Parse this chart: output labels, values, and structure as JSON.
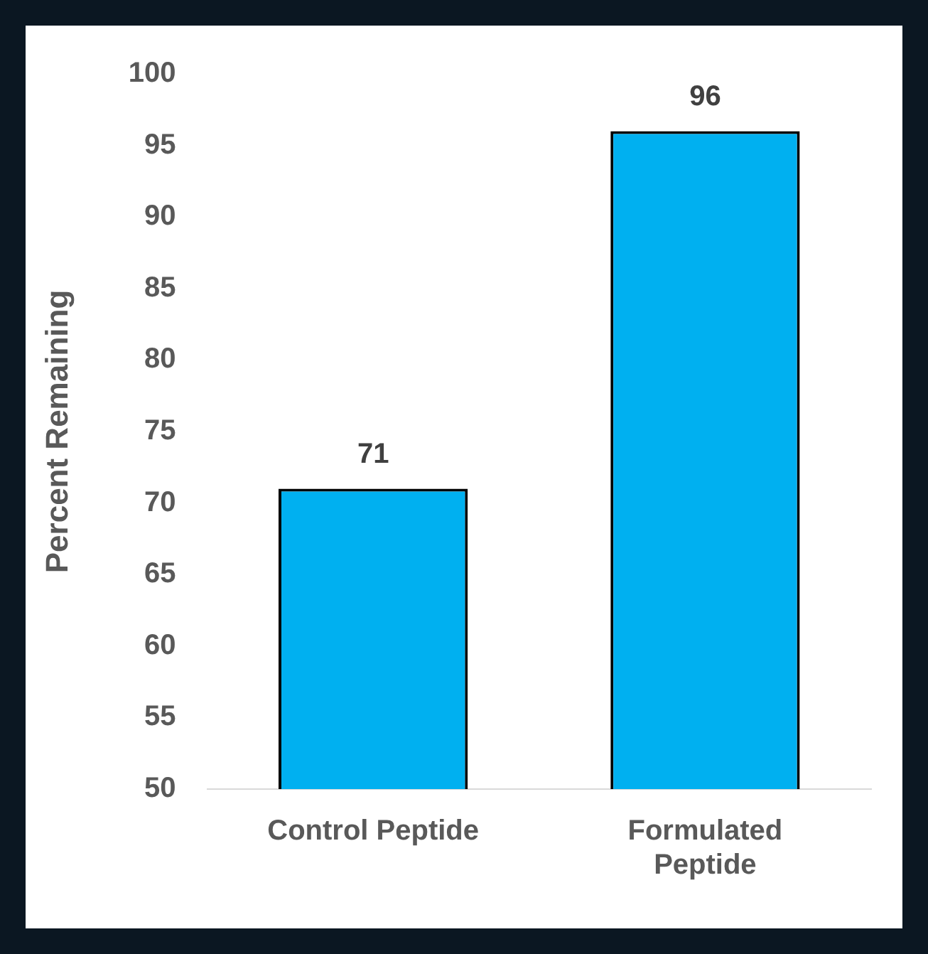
{
  "chart_data": {
    "type": "bar",
    "ylabel": "Percent Remaining",
    "categories": [
      "Control Peptide",
      "Formulated Peptide"
    ],
    "values": [
      71,
      96
    ],
    "color": "#00b0f0",
    "ylim": [
      50,
      100
    ],
    "yticks": [
      50,
      55,
      60,
      65,
      70,
      75,
      80,
      85,
      90,
      95,
      100
    ],
    "grid": false,
    "legend": false,
    "data_labels": true
  }
}
